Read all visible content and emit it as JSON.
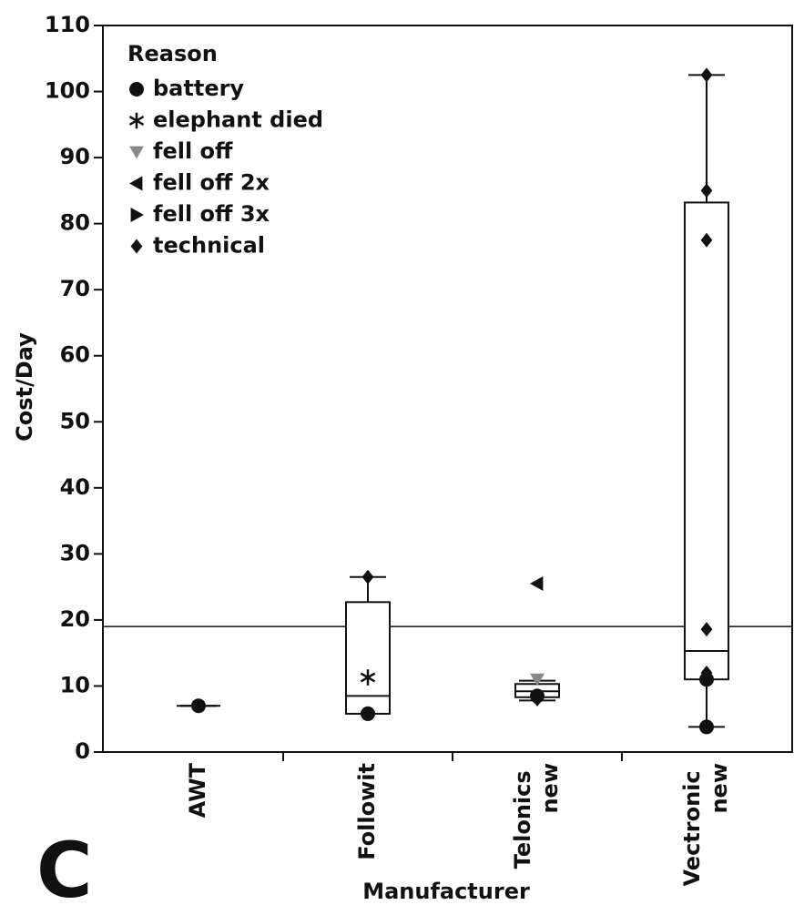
{
  "chart_data": {
    "type": "box",
    "panel_label": "C",
    "ylabel": "Cost/Day",
    "xlabel": "Manufacturer",
    "categories": [
      "AWT",
      "Followit",
      "Telonics new",
      "Vectronic new"
    ],
    "ylim": [
      0,
      110
    ],
    "yticks": [
      0,
      10,
      20,
      30,
      40,
      50,
      60,
      70,
      80,
      90,
      100,
      110
    ],
    "reference_line": 19,
    "boxes": [
      {
        "min": 7,
        "q1": 7,
        "median": 7,
        "q3": 7,
        "max": 7
      },
      {
        "min": 5.8,
        "q1": 5.8,
        "median": 8.5,
        "q3": 22.7,
        "max": 26.5
      },
      {
        "min": 7.8,
        "q1": 8.3,
        "median": 9.2,
        "q3": 10.3,
        "max": 10.8
      },
      {
        "min": 3.8,
        "q1": 11,
        "median": 15.3,
        "q3": 83.2,
        "max": 102.5
      }
    ],
    "legend_title": "Reason",
    "reasons": [
      {
        "name": "battery",
        "marker": "circle",
        "color": "#111111"
      },
      {
        "name": "elephant died",
        "marker": "asterisk",
        "color": "#111111"
      },
      {
        "name": "fell off",
        "marker": "triangle-down",
        "color": "#888888"
      },
      {
        "name": "fell off 2x",
        "marker": "triangle-left",
        "color": "#111111"
      },
      {
        "name": "fell off 3x",
        "marker": "triangle-right",
        "color": "#111111"
      },
      {
        "name": "technical",
        "marker": "diamond",
        "color": "#111111"
      }
    ],
    "points": [
      {
        "category": 0,
        "reason": 0,
        "value": 7
      },
      {
        "category": 1,
        "reason": 5,
        "value": 26.5
      },
      {
        "category": 1,
        "reason": 1,
        "value": 11.3
      },
      {
        "category": 1,
        "reason": 0,
        "value": 5.8
      },
      {
        "category": 2,
        "reason": 3,
        "value": 25.5
      },
      {
        "category": 2,
        "reason": 2,
        "value": 11
      },
      {
        "category": 2,
        "reason": 0,
        "value": 8.5
      },
      {
        "category": 2,
        "reason": 5,
        "value": 8
      },
      {
        "category": 3,
        "reason": 5,
        "value": 102.5
      },
      {
        "category": 3,
        "reason": 5,
        "value": 85
      },
      {
        "category": 3,
        "reason": 5,
        "value": 77.5
      },
      {
        "category": 3,
        "reason": 5,
        "value": 18.6
      },
      {
        "category": 3,
        "reason": 5,
        "value": 12
      },
      {
        "category": 3,
        "reason": 0,
        "value": 11
      },
      {
        "category": 3,
        "reason": 0,
        "value": 3.8
      }
    ]
  }
}
